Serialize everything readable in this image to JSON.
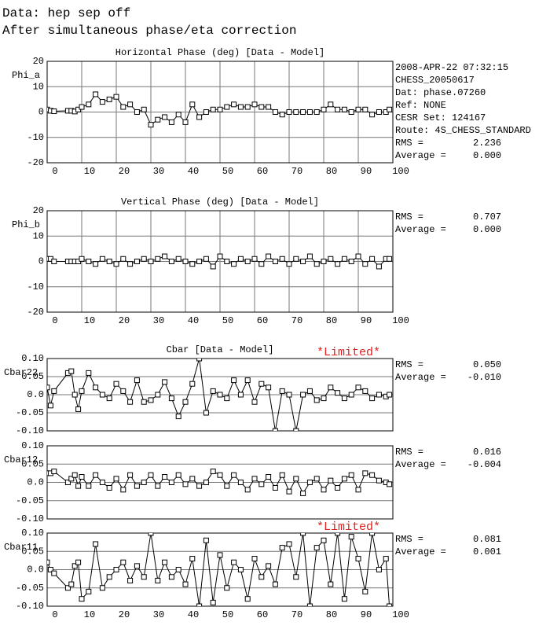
{
  "header": [
    "Data: hep sep off",
    "After simultaneous phase/eta correction"
  ],
  "chart_data": [
    {
      "type": "line",
      "title": "Horizontal Phase (deg) [Data - Model]",
      "ylabel": "Phi_a",
      "color": "#000000",
      "marker": "square",
      "grid": "both",
      "info": [
        "2008-APR-22 07:32:15",
        "CHESS_20050617",
        "Dat: phase.07260",
        "Ref: NONE",
        "CESR Set: 124167",
        "Route: 4S_CHESS_STANDARD"
      ],
      "stats": [
        {
          "label": "RMS =",
          "value": "2.236"
        },
        {
          "label": "Average =",
          "value": "0.000"
        }
      ],
      "xlim": [
        0,
        100
      ],
      "xticks": [
        0,
        10,
        20,
        30,
        40,
        50,
        60,
        70,
        80,
        90,
        100
      ],
      "ylim": [
        -20,
        20
      ],
      "yticks": [
        20,
        10,
        0,
        -10,
        -20
      ],
      "x": [
        0,
        1,
        2,
        6,
        7,
        8,
        9,
        10,
        12,
        14,
        16,
        18,
        20,
        22,
        24,
        26,
        28,
        30,
        32,
        34,
        36,
        38,
        40,
        42,
        44,
        46,
        48,
        50,
        52,
        54,
        56,
        58,
        60,
        62,
        64,
        66,
        68,
        70,
        72,
        74,
        76,
        78,
        80,
        82,
        84,
        86,
        88,
        90,
        92,
        94,
        96,
        98,
        99
      ],
      "values": [
        1,
        0.5,
        0.3,
        0.5,
        0.5,
        0.2,
        1,
        2,
        3,
        7,
        4,
        5,
        6,
        2,
        3,
        0,
        1,
        -5,
        -3,
        -2,
        -4,
        -1,
        -4,
        3,
        -2,
        0,
        1,
        1,
        2,
        3,
        2,
        2,
        3,
        2,
        2,
        0,
        -1,
        0,
        0,
        0,
        0,
        0,
        1,
        3,
        1,
        1,
        0,
        1,
        1,
        -1,
        0,
        0,
        1
      ]
    },
    {
      "type": "line",
      "title": "Vertical Phase (deg) [Data - Model]",
      "ylabel": "Phi_b",
      "color": "#000000",
      "marker": "square",
      "grid": "both",
      "stats": [
        {
          "label": "RMS =",
          "value": "0.707"
        },
        {
          "label": "Average =",
          "value": "0.000"
        }
      ],
      "xlim": [
        0,
        100
      ],
      "xticks": [
        0,
        10,
        20,
        30,
        40,
        50,
        60,
        70,
        80,
        90,
        100
      ],
      "ylim": [
        -20,
        20
      ],
      "yticks": [
        20,
        10,
        0,
        -10,
        -20
      ],
      "x": [
        0,
        1,
        2,
        6,
        7,
        8,
        9,
        10,
        12,
        14,
        16,
        18,
        20,
        22,
        24,
        26,
        28,
        30,
        32,
        34,
        36,
        38,
        40,
        42,
        44,
        46,
        48,
        50,
        52,
        54,
        56,
        58,
        60,
        62,
        64,
        66,
        68,
        70,
        72,
        74,
        76,
        78,
        80,
        82,
        84,
        86,
        88,
        90,
        92,
        94,
        96,
        98,
        99
      ],
      "values": [
        1,
        1,
        0,
        0,
        0,
        0,
        0,
        1,
        0,
        -1,
        1,
        0,
        -1,
        1,
        -1,
        0,
        1,
        0,
        1,
        2,
        0,
        1,
        0,
        -1,
        0,
        1,
        -2,
        2,
        0,
        -1,
        1,
        0,
        1,
        -1,
        2,
        0,
        1,
        -1,
        1,
        0,
        2,
        -1,
        0,
        1,
        -1,
        1,
        0,
        2,
        -1,
        1,
        -2,
        1,
        1
      ]
    },
    {
      "type": "line",
      "title": "Cbar [Data - Model]",
      "limited": "*Limited*",
      "ylabel": "Cbar22",
      "color": "#000000",
      "marker": "square",
      "grid": "y",
      "stats": [
        {
          "label": "RMS =",
          "value": "0.050"
        },
        {
          "label": "Average =",
          "value": "-0.010"
        }
      ],
      "xlim": [
        0,
        100
      ],
      "ylim": [
        -0.1,
        0.1
      ],
      "yticks": [
        {
          "value": 0.1,
          "label": "0.10"
        },
        0.05,
        {
          "value": 0,
          "label": "0.0"
        },
        -0.05,
        {
          "value": -0.1,
          "label": "-0.10"
        }
      ],
      "x": [
        0,
        1,
        2,
        6,
        7,
        8,
        9,
        10,
        12,
        14,
        16,
        18,
        20,
        22,
        24,
        26,
        28,
        30,
        32,
        34,
        36,
        38,
        40,
        42,
        44,
        46,
        48,
        50,
        52,
        54,
        56,
        58,
        60,
        62,
        64,
        66,
        68,
        70,
        72,
        74,
        76,
        78,
        80,
        82,
        84,
        86,
        88,
        90,
        92,
        94,
        96,
        98,
        99
      ],
      "values": [
        0.02,
        -0.03,
        0.01,
        0.06,
        0.065,
        0.0,
        -0.04,
        0.01,
        0.06,
        0.02,
        0.0,
        -0.01,
        0.03,
        0.01,
        -0.02,
        0.04,
        -0.02,
        -0.015,
        0.0,
        0.035,
        -0.01,
        -0.06,
        -0.02,
        0.03,
        0.1,
        -0.05,
        0.01,
        0.0,
        -0.01,
        0.04,
        0.0,
        0.04,
        -0.02,
        0.03,
        0.02,
        -0.1,
        0.01,
        0.0,
        -0.1,
        0.0,
        0.01,
        -0.015,
        -0.01,
        0.02,
        0.005,
        -0.01,
        0.0,
        0.02,
        0.01,
        -0.01,
        0.0,
        -0.005,
        0.0
      ]
    },
    {
      "type": "line",
      "ylabel": "Cbar12",
      "color": "#000000",
      "marker": "square",
      "grid": "y",
      "stats": [
        {
          "label": "RMS =",
          "value": "0.016"
        },
        {
          "label": "Average =",
          "value": "-0.004"
        }
      ],
      "xlim": [
        0,
        100
      ],
      "ylim": [
        -0.1,
        0.1
      ],
      "yticks": [
        {
          "value": 0.1,
          "label": "0.10"
        },
        0.05,
        {
          "value": 0,
          "label": "0.0"
        },
        -0.05,
        {
          "value": -0.1,
          "label": "-0.10"
        }
      ],
      "x": [
        0,
        1,
        2,
        6,
        7,
        8,
        9,
        10,
        12,
        14,
        16,
        18,
        20,
        22,
        24,
        26,
        28,
        30,
        32,
        34,
        36,
        38,
        40,
        42,
        44,
        46,
        48,
        50,
        52,
        54,
        56,
        58,
        60,
        62,
        64,
        66,
        68,
        70,
        72,
        74,
        76,
        78,
        80,
        82,
        84,
        86,
        88,
        90,
        92,
        94,
        96,
        98,
        99
      ],
      "values": [
        0.025,
        0.025,
        0.03,
        0.0,
        0.01,
        0.02,
        -0.01,
        0.015,
        -0.01,
        0.02,
        0.0,
        -0.015,
        0.01,
        -0.02,
        0.02,
        -0.01,
        0.0,
        0.02,
        -0.01,
        0.015,
        0.0,
        0.02,
        -0.005,
        0.01,
        -0.01,
        0.0,
        0.03,
        0.02,
        -0.01,
        0.02,
        0.0,
        -0.02,
        0.01,
        -0.005,
        0.015,
        -0.015,
        0.02,
        -0.025,
        0.01,
        -0.03,
        0.0,
        0.01,
        -0.02,
        0.005,
        -0.015,
        0.01,
        0.02,
        -0.02,
        0.025,
        0.02,
        0.005,
        0.0,
        -0.005
      ]
    },
    {
      "type": "line",
      "limited": "*Limited*",
      "ylabel": "Cbar11",
      "color": "#000000",
      "marker": "square",
      "grid": "y",
      "stats": [
        {
          "label": "RMS =",
          "value": "0.081"
        },
        {
          "label": "Average =",
          "value": "0.001"
        }
      ],
      "xlim": [
        0,
        100
      ],
      "xticks": [
        0,
        10,
        20,
        30,
        40,
        50,
        60,
        70,
        80,
        90,
        100
      ],
      "ylim": [
        -0.1,
        0.1
      ],
      "yticks": [
        {
          "value": 0.1,
          "label": "0.10"
        },
        0.05,
        {
          "value": 0,
          "label": "0.0"
        },
        -0.05,
        {
          "value": -0.1,
          "label": "-0.10"
        }
      ],
      "x": [
        0,
        1,
        2,
        6,
        7,
        8,
        9,
        10,
        12,
        14,
        16,
        18,
        20,
        22,
        24,
        26,
        28,
        30,
        32,
        34,
        36,
        38,
        40,
        42,
        44,
        46,
        48,
        50,
        52,
        54,
        56,
        58,
        60,
        62,
        64,
        66,
        68,
        70,
        72,
        74,
        76,
        78,
        80,
        82,
        84,
        86,
        88,
        90,
        92,
        94,
        96,
        98,
        99
      ],
      "values": [
        0.02,
        0.0,
        -0.01,
        -0.05,
        -0.04,
        0.01,
        0.02,
        -0.08,
        -0.06,
        0.07,
        -0.05,
        -0.02,
        0.0,
        0.02,
        -0.03,
        0.01,
        -0.02,
        0.1,
        -0.03,
        0.02,
        -0.02,
        0.0,
        -0.04,
        0.03,
        -0.1,
        0.08,
        -0.09,
        0.04,
        -0.05,
        0.02,
        0.0,
        -0.08,
        0.03,
        -0.02,
        0.01,
        -0.04,
        0.06,
        0.07,
        -0.02,
        0.1,
        -0.1,
        0.06,
        0.08,
        -0.04,
        0.1,
        -0.08,
        0.09,
        0.03,
        -0.06,
        0.1,
        0.0,
        0.03,
        -0.1
      ]
    }
  ]
}
